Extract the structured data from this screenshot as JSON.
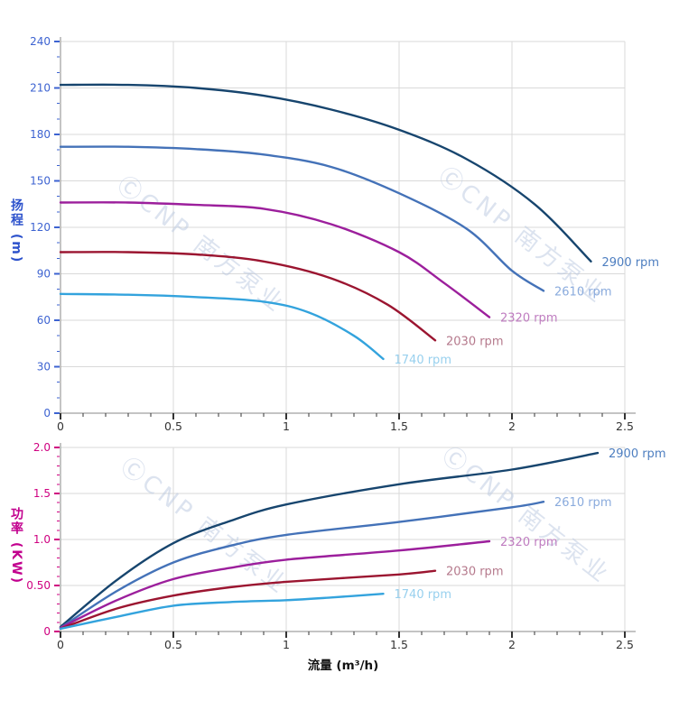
{
  "page": {
    "background": "#ffffff"
  },
  "watermark": {
    "text": "ⒸCNP 南方泵业",
    "color": "#bac8e0"
  },
  "styles": {
    "grid_color": "#d9d9d9",
    "axis_line_color": "#8a8a8a",
    "x_tick_color": "#333333",
    "curve_width": 2.4
  },
  "chart_data": [
    {
      "type": "line",
      "title": "",
      "ylabel": "扬程 (m)",
      "xlabel": "",
      "ylim": [
        0,
        240
      ],
      "xlim": [
        0,
        2.5
      ],
      "grid": true,
      "legend_position": "labels-at-curve-ends",
      "y_axis_color": "#3d63d1",
      "y_ticks": {
        "major": [
          {
            "v": 0,
            "label": "0"
          },
          {
            "v": 30,
            "label": "30"
          },
          {
            "v": 60,
            "label": "60"
          },
          {
            "v": 90,
            "label": "90"
          },
          {
            "v": 120,
            "label": "120"
          },
          {
            "v": 150,
            "label": "150"
          },
          {
            "v": 180,
            "label": "180"
          },
          {
            "v": 210,
            "label": "210"
          },
          {
            "v": 240,
            "label": "240"
          }
        ],
        "minor_step": 10,
        "major_step": 30
      },
      "x_ticks": {
        "major": [
          {
            "v": 0,
            "label": "0"
          },
          {
            "v": 0.5,
            "label": "0.5"
          },
          {
            "v": 1,
            "label": "1"
          },
          {
            "v": 1.5,
            "label": "1.5"
          },
          {
            "v": 2,
            "label": "2"
          },
          {
            "v": 2.5,
            "label": "2.5"
          }
        ],
        "minor_step": 0.1,
        "major_step": 0.5
      },
      "series": [
        {
          "name": "2900 rpm",
          "color": "#17456e",
          "label_color": "#4d7ec0",
          "points": [
            [
              0,
              212
            ],
            [
              0.3,
              212
            ],
            [
              0.6,
              210
            ],
            [
              0.9,
              205
            ],
            [
              1.2,
              196
            ],
            [
              1.5,
              183
            ],
            [
              1.8,
              164
            ],
            [
              2.1,
              135
            ],
            [
              2.35,
              98
            ]
          ]
        },
        {
          "name": "2610 rpm",
          "color": "#4472b8",
          "label_color": "#8aabdd",
          "points": [
            [
              0,
              172
            ],
            [
              0.3,
              172
            ],
            [
              0.6,
              170.5
            ],
            [
              0.9,
              167
            ],
            [
              1.2,
              159
            ],
            [
              1.5,
              142
            ],
            [
              1.8,
              119
            ],
            [
              2.0,
              92
            ],
            [
              2.14,
              79
            ]
          ]
        },
        {
          "name": "2320 rpm",
          "color": "#9c1f9c",
          "label_color": "#bf7cc0",
          "points": [
            [
              0,
              136
            ],
            [
              0.3,
              136
            ],
            [
              0.6,
              134.5
            ],
            [
              0.9,
              132
            ],
            [
              1.2,
              122
            ],
            [
              1.5,
              104
            ],
            [
              1.7,
              84
            ],
            [
              1.9,
              62
            ]
          ]
        },
        {
          "name": "2030 rpm",
          "color": "#9b1530",
          "label_color": "#b5798c",
          "points": [
            [
              0,
              104
            ],
            [
              0.3,
              104
            ],
            [
              0.6,
              102.5
            ],
            [
              0.9,
              98
            ],
            [
              1.2,
              87
            ],
            [
              1.45,
              70
            ],
            [
              1.66,
              47
            ]
          ]
        },
        {
          "name": "1740 rpm",
          "color": "#33a3dd",
          "label_color": "#98d0ee",
          "points": [
            [
              0,
              77
            ],
            [
              0.3,
              76.5
            ],
            [
              0.6,
              75
            ],
            [
              0.9,
              72
            ],
            [
              1.1,
              65
            ],
            [
              1.3,
              50
            ],
            [
              1.43,
              35
            ]
          ]
        }
      ]
    },
    {
      "type": "line",
      "title": "",
      "ylabel": "功率 (KW)",
      "xlabel": "流量 (m³/h)",
      "ylim": [
        0,
        2.0
      ],
      "xlim": [
        0,
        2.5
      ],
      "grid": true,
      "legend_position": "labels-at-curve-ends",
      "y_axis_color": "#cf0080",
      "y_ticks": {
        "major": [
          {
            "v": 0,
            "label": "0"
          },
          {
            "v": 0.5,
            "label": "0.50"
          },
          {
            "v": 1,
            "label": "1.0"
          },
          {
            "v": 1.5,
            "label": "1.5"
          },
          {
            "v": 2,
            "label": "2.0"
          }
        ],
        "minor_step": 0.1,
        "major_step": 0.5
      },
      "x_ticks": {
        "major": [
          {
            "v": 0,
            "label": "0"
          },
          {
            "v": 0.5,
            "label": "0.5"
          },
          {
            "v": 1,
            "label": "1"
          },
          {
            "v": 1.5,
            "label": "1.5"
          },
          {
            "v": 2,
            "label": "2"
          },
          {
            "v": 2.5,
            "label": "2.5"
          }
        ],
        "minor_step": 0.1,
        "major_step": 0.5
      },
      "series": [
        {
          "name": "2900 rpm",
          "color": "#17456e",
          "label_color": "#4d7ec0",
          "points": [
            [
              0,
              0.05
            ],
            [
              0.25,
              0.56
            ],
            [
              0.5,
              0.96
            ],
            [
              0.75,
              1.2
            ],
            [
              1.0,
              1.38
            ],
            [
              1.5,
              1.6
            ],
            [
              2.0,
              1.76
            ],
            [
              2.38,
              1.94
            ]
          ]
        },
        {
          "name": "2610 rpm",
          "color": "#4472b8",
          "label_color": "#8aabdd",
          "points": [
            [
              0,
              0.04
            ],
            [
              0.25,
              0.44
            ],
            [
              0.5,
              0.75
            ],
            [
              0.75,
              0.93
            ],
            [
              1.0,
              1.05
            ],
            [
              1.5,
              1.19
            ],
            [
              2.0,
              1.35
            ],
            [
              2.14,
              1.41
            ]
          ]
        },
        {
          "name": "2320 rpm",
          "color": "#9c1f9c",
          "label_color": "#bf7cc0",
          "points": [
            [
              0,
              0.04
            ],
            [
              0.25,
              0.34
            ],
            [
              0.5,
              0.57
            ],
            [
              0.75,
              0.69
            ],
            [
              1.0,
              0.78
            ],
            [
              1.5,
              0.88
            ],
            [
              1.9,
              0.98
            ]
          ]
        },
        {
          "name": "2030 rpm",
          "color": "#9b1530",
          "label_color": "#b5798c",
          "points": [
            [
              0,
              0.03
            ],
            [
              0.25,
              0.25
            ],
            [
              0.5,
              0.39
            ],
            [
              0.75,
              0.48
            ],
            [
              1.0,
              0.54
            ],
            [
              1.5,
              0.62
            ],
            [
              1.66,
              0.66
            ]
          ]
        },
        {
          "name": "1740 rpm",
          "color": "#33a3dd",
          "label_color": "#98d0ee",
          "points": [
            [
              0,
              0.03
            ],
            [
              0.25,
              0.16
            ],
            [
              0.5,
              0.28
            ],
            [
              0.75,
              0.32
            ],
            [
              1.0,
              0.34
            ],
            [
              1.2,
              0.37
            ],
            [
              1.43,
              0.41
            ]
          ]
        }
      ]
    }
  ]
}
